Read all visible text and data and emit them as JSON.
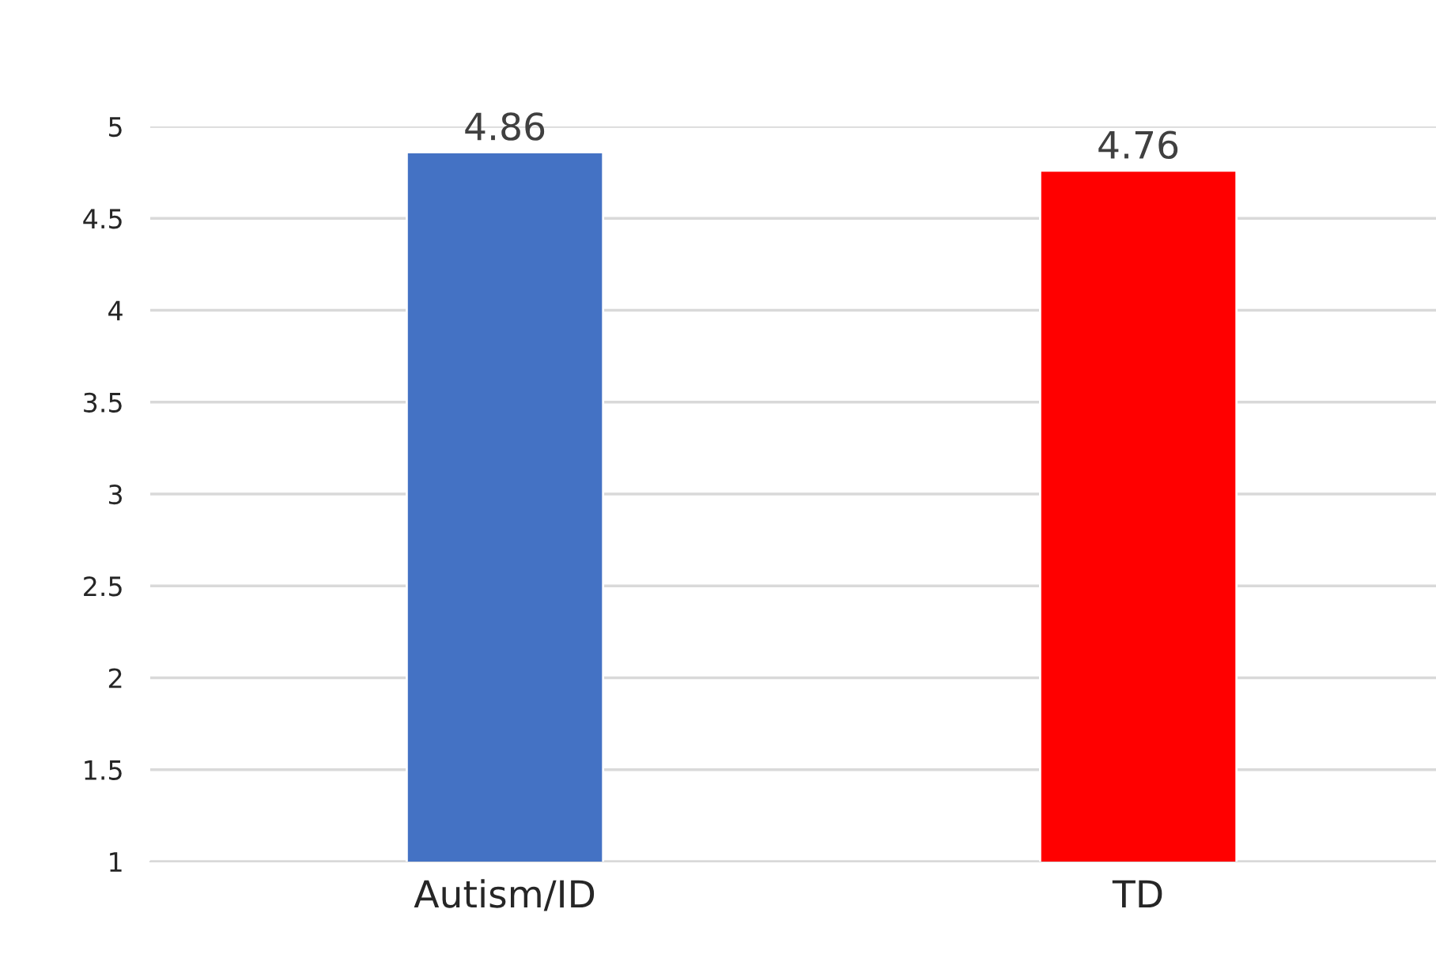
{
  "chart_data": {
    "type": "bar",
    "categories": [
      "Autism/ID",
      "TD"
    ],
    "values": [
      4.86,
      4.76
    ],
    "colors": [
      "#4472c4",
      "#ff0000"
    ],
    "ylim": [
      1,
      5
    ],
    "yticks": [
      {
        "value": 1,
        "label": "1"
      },
      1.5,
      2,
      2.5,
      3,
      3.5,
      4,
      4.5,
      5
    ],
    "grid": "y",
    "data_labels": true
  }
}
